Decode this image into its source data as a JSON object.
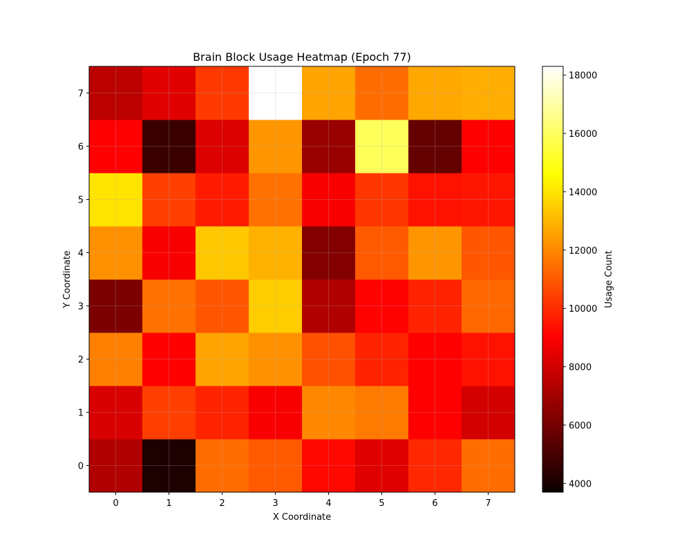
{
  "chart_data": {
    "type": "heatmap",
    "title": "Brain Block Usage Heatmap (Epoch 77)",
    "xlabel": "X Coordinate",
    "ylabel": "Y Coordinate",
    "x": [
      0,
      1,
      2,
      3,
      4,
      5,
      6,
      7
    ],
    "y": [
      0,
      1,
      2,
      3,
      4,
      5,
      6,
      7
    ],
    "values": [
      [
        6800,
        3700,
        11400,
        11000,
        9200,
        7800,
        9900,
        11400
      ],
      [
        7600,
        10400,
        9800,
        8300,
        12000,
        11700,
        9000,
        7500
      ],
      [
        11800,
        9000,
        12600,
        12200,
        10800,
        9800,
        8800,
        9400
      ],
      [
        5700,
        11500,
        10900,
        13500,
        6800,
        9100,
        9800,
        11300
      ],
      [
        12200,
        8300,
        13400,
        12900,
        5800,
        11000,
        12300,
        10900
      ],
      [
        14000,
        10400,
        9600,
        11500,
        8300,
        10200,
        9400,
        9500
      ],
      [
        8500,
        4300,
        7700,
        12300,
        6300,
        15900,
        5200,
        8400
      ],
      [
        7000,
        7800,
        10300,
        18300,
        12600,
        11400,
        12700,
        12800
      ]
    ],
    "colormap": "hot",
    "vmin": 3700,
    "vmax": 18300,
    "colorbar": {
      "label": "Usage Count",
      "ticks": [
        4000,
        6000,
        8000,
        10000,
        12000,
        14000,
        16000,
        18000
      ]
    },
    "grid": true
  }
}
